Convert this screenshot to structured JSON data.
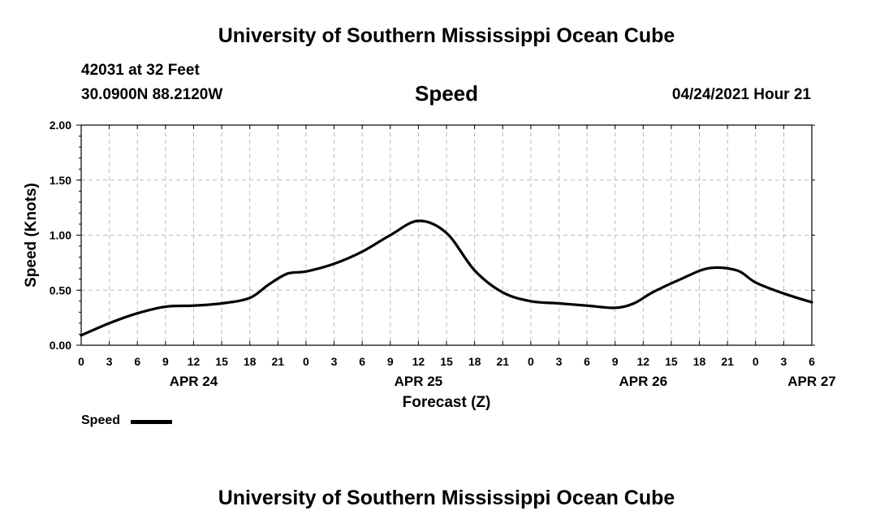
{
  "header": {
    "title": "University of Southern Mississippi Ocean Cube",
    "station": "42031 at 32 Feet",
    "coordinates": "30.0900N  88.2120W",
    "variable": "Speed",
    "datetime": "04/24/2021 Hour 21"
  },
  "footer": {
    "title": "University of Southern Mississippi Ocean Cube"
  },
  "legend": {
    "label": "Speed"
  },
  "chart_data": {
    "type": "line",
    "title": "Speed",
    "xlabel": "Forecast (Z)",
    "ylabel": "Speed (Knots)",
    "ylim": [
      0,
      2
    ],
    "xlim": [
      0,
      78
    ],
    "yticks": [
      "0.00",
      "0.50",
      "1.00",
      "1.50",
      "2.00"
    ],
    "ytick_values": [
      0,
      0.5,
      1.0,
      1.5,
      2.0
    ],
    "xticks": [
      "0",
      "3",
      "6",
      "9",
      "12",
      "15",
      "18",
      "21",
      "0",
      "3",
      "6",
      "9",
      "12",
      "15",
      "18",
      "21",
      "0",
      "3",
      "6",
      "9",
      "12",
      "15",
      "18",
      "21",
      "0",
      "3",
      "6"
    ],
    "date_labels": [
      {
        "label": "APR 24",
        "hour": 12
      },
      {
        "label": "APR 25",
        "hour": 36
      },
      {
        "label": "APR 26",
        "hour": 60
      },
      {
        "label": "APR 27",
        "hour": 78
      }
    ],
    "grid": true,
    "series": [
      {
        "name": "Speed",
        "color": "#000000",
        "x": [
          0,
          3,
          6,
          9,
          12,
          15,
          18,
          20,
          22,
          24,
          27,
          30,
          33,
          36,
          39,
          42,
          45,
          48,
          51,
          54,
          57,
          59,
          61,
          64,
          67,
          70,
          72,
          75,
          78
        ],
        "y": [
          0.09,
          0.2,
          0.29,
          0.35,
          0.36,
          0.38,
          0.43,
          0.55,
          0.65,
          0.67,
          0.74,
          0.85,
          1.0,
          1.13,
          1.02,
          0.68,
          0.48,
          0.4,
          0.38,
          0.36,
          0.34,
          0.38,
          0.48,
          0.6,
          0.7,
          0.68,
          0.57,
          0.47,
          0.39
        ]
      }
    ]
  }
}
